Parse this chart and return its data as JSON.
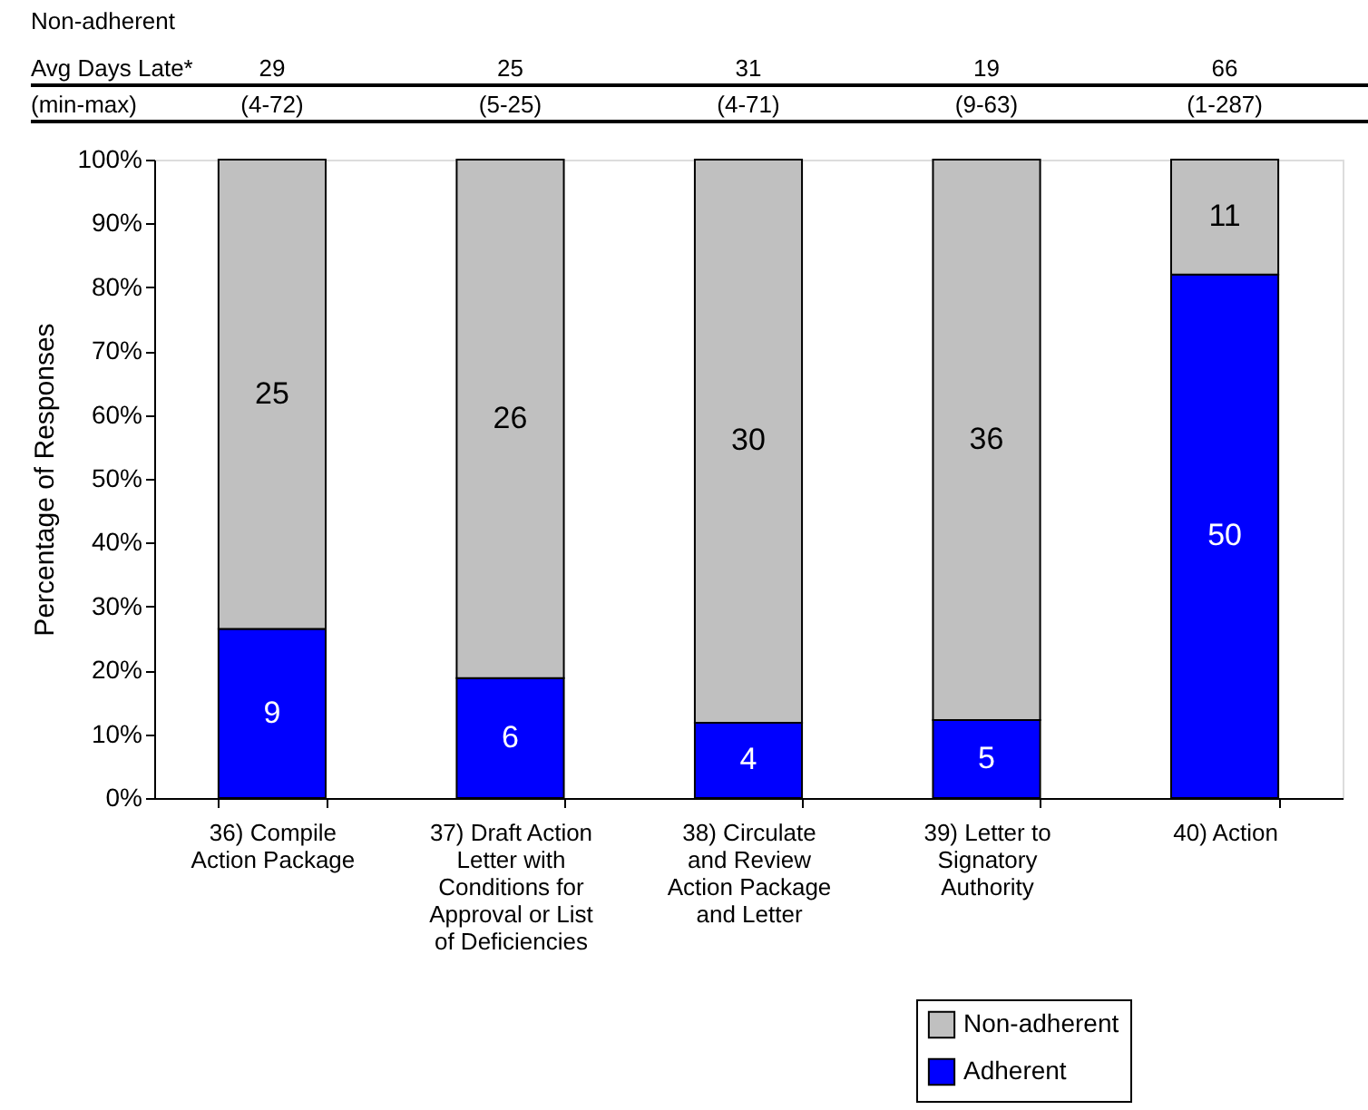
{
  "chart_data": {
    "type": "bar",
    "stacked": true,
    "ylabel": "Percentage of Responses",
    "categories": [
      "36) Compile\nAction Package",
      "37) Draft Action\nLetter with\nConditions for\nApproval or List\nof Deficiencies",
      "38) Circulate\nand Review\nAction Package\nand Letter",
      "39) Letter to\nSignatory\nAuthority",
      "40) Action"
    ],
    "series": [
      {
        "name": "Adherent",
        "color": "#0000ff",
        "values": [
          26.5,
          18.8,
          11.8,
          12.2,
          82.0
        ]
      },
      {
        "name": "Non-adherent",
        "color": "#c0c0c0",
        "values": [
          73.5,
          81.2,
          88.2,
          87.8,
          18.0
        ]
      }
    ],
    "ylim": [
      0,
      100
    ],
    "yticks": [
      {
        "value": 0,
        "label": "0%"
      },
      {
        "value": 10,
        "label": "10%"
      },
      {
        "value": 20,
        "label": "20%"
      },
      {
        "value": 30,
        "label": "30%"
      },
      {
        "value": 40,
        "label": "40%"
      },
      {
        "value": 50,
        "label": "50%"
      },
      {
        "value": 60,
        "label": "60%"
      },
      {
        "value": 70,
        "label": "70%"
      },
      {
        "value": 80,
        "label": "80%"
      },
      {
        "value": 90,
        "label": "90%"
      },
      {
        "value": 100,
        "label": "100%"
      }
    ],
    "grid": false,
    "legend": "bottom right",
    "annotations": [
      "Non-adherent",
      "Avg Days Late*",
      "(min-max)",
      "29",
      "(4-72)",
      "25",
      "(5-25)",
      "31",
      "(4-71)",
      "19",
      "(9-63)",
      "66",
      "(1-287)",
      "9",
      "6",
      "4",
      "5",
      "50",
      "25",
      "26",
      "30",
      "36",
      "11"
    ]
  }
}
